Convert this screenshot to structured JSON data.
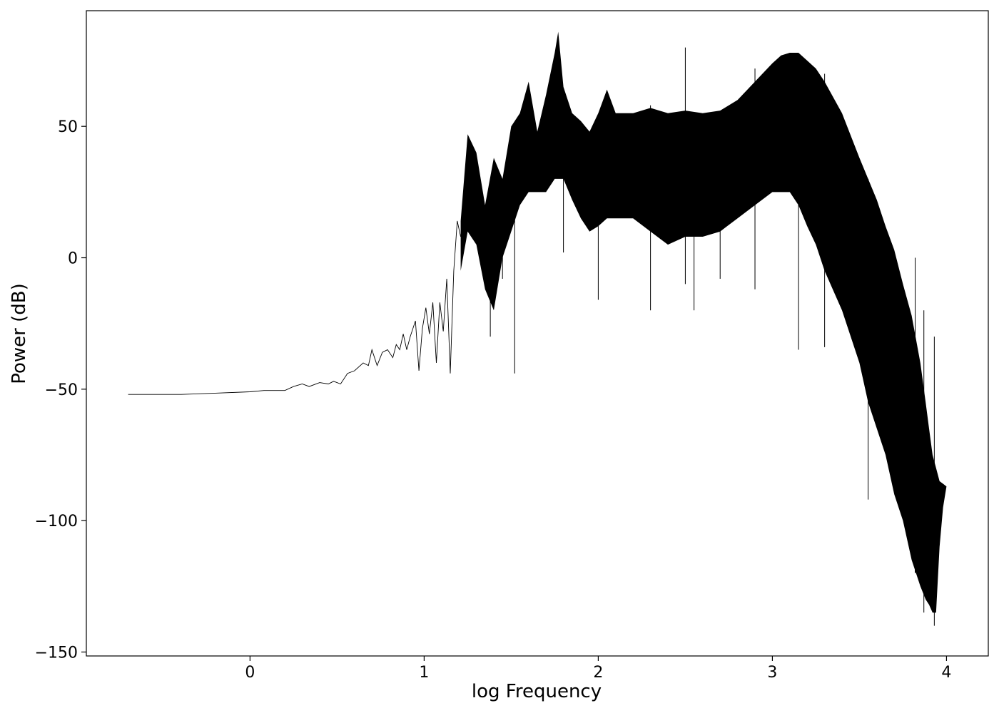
{
  "chart_data": {
    "type": "line",
    "title": "",
    "xlabel": "log Frequency",
    "ylabel": "Power (dB)",
    "xlim": [
      -0.94,
      4.24
    ],
    "ylim": [
      -151.5,
      94
    ],
    "xticks": [
      0,
      1,
      2,
      3,
      4
    ],
    "xtick_labels": [
      "0",
      "1",
      "2",
      "3",
      "4"
    ],
    "yticks": [
      -150,
      -100,
      -50,
      0,
      50
    ],
    "ytick_labels": [
      "−150",
      "−100",
      "−50",
      "0",
      "50"
    ],
    "grid": false,
    "line_color": "#000000",
    "series": [
      {
        "note_points": "smooth low-frequency part",
        "x": [
          -0.7,
          -0.4,
          -0.2,
          0.0,
          0.08,
          0.2,
          0.25,
          0.3,
          0.34,
          0.4,
          0.45,
          0.48,
          0.52,
          0.56,
          0.6,
          0.65,
          0.68,
          0.7,
          0.73,
          0.76,
          0.79,
          0.82,
          0.84,
          0.86,
          0.88,
          0.9,
          0.92,
          0.95,
          0.97,
          0.99,
          1.01,
          1.03,
          1.05,
          1.07,
          1.09,
          1.11,
          1.13,
          1.15,
          1.17,
          1.19,
          1.21
        ],
        "y": [
          -52,
          -52,
          -51.5,
          -51,
          -50.5,
          -50.5,
          -49,
          -48,
          -49,
          -47.5,
          -48,
          -47,
          -48,
          -44,
          -43,
          -40,
          -41,
          -35,
          -41,
          -36,
          -35,
          -38,
          -33,
          -35,
          -29,
          -35,
          -30,
          -24,
          -43,
          -27,
          -19,
          -29,
          -17,
          -40,
          -17,
          -28,
          -8,
          -44,
          -5,
          14,
          8
        ]
      }
    ],
    "band": {
      "note": "dense oscillating region rendered as filled envelope",
      "x": [
        1.21,
        1.25,
        1.3,
        1.35,
        1.4,
        1.45,
        1.5,
        1.55,
        1.6,
        1.65,
        1.7,
        1.75,
        1.77,
        1.8,
        1.85,
        1.9,
        1.95,
        2.0,
        2.05,
        2.1,
        2.2,
        2.3,
        2.4,
        2.5,
        2.6,
        2.7,
        2.8,
        2.9,
        3.0,
        3.05,
        3.1,
        3.15,
        3.2,
        3.25,
        3.3,
        3.4,
        3.5,
        3.55,
        3.6,
        3.65,
        3.7,
        3.75,
        3.8,
        3.85,
        3.88,
        3.9,
        3.92,
        3.94,
        3.96,
        3.98,
        4.0
      ],
      "upper": [
        14,
        47,
        40,
        20,
        38,
        30,
        50,
        55,
        67,
        48,
        62,
        78,
        86,
        65,
        55,
        52,
        48,
        55,
        64,
        55,
        55,
        57,
        55,
        56,
        55,
        56,
        60,
        67,
        74,
        77,
        78,
        78,
        75,
        72,
        67,
        55,
        38,
        30,
        22,
        12,
        3,
        -10,
        -22,
        -40,
        -55,
        -65,
        -75,
        -80,
        -85,
        -86,
        -87
      ],
      "lower": [
        -5,
        10,
        5,
        -12,
        -20,
        0,
        10,
        20,
        25,
        25,
        25,
        30,
        30,
        30,
        22,
        15,
        10,
        12,
        15,
        15,
        15,
        10,
        5,
        8,
        8,
        10,
        15,
        20,
        25,
        25,
        25,
        20,
        12,
        5,
        -5,
        -20,
        -40,
        -55,
        -65,
        -75,
        -90,
        -100,
        -115,
        -125,
        -130,
        -132,
        -135,
        -135,
        -110,
        -95,
        -87
      ]
    },
    "spikes": {
      "x": [
        1.38,
        1.4,
        1.45,
        1.52,
        1.8,
        2.0,
        2.3,
        2.5,
        2.55,
        2.7,
        2.9,
        3.15,
        3.3,
        3.55,
        3.8,
        3.82,
        3.87,
        3.93
      ],
      "low": [
        -30,
        -15,
        -8,
        -44,
        2,
        -16,
        -20,
        -10,
        -20,
        -8,
        -12,
        -35,
        -34,
        -92,
        19,
        -120,
        -135,
        -140
      ],
      "high": [
        5,
        10,
        20,
        30,
        60,
        50,
        58,
        80,
        55,
        55,
        72,
        72,
        70,
        30,
        19,
        0,
        -20,
        -30
      ]
    }
  }
}
